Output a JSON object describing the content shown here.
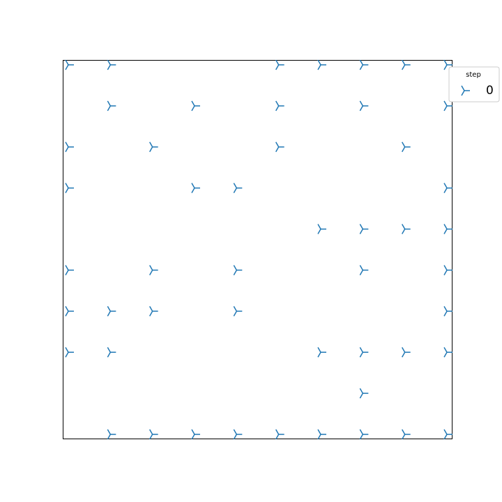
{
  "chart_data": {
    "type": "scatter",
    "title": "",
    "xlabel": "",
    "ylabel": "",
    "xlim": [
      0,
      9
    ],
    "ylim": [
      0,
      9
    ],
    "grid": false,
    "axes_visible": false,
    "marker": "tri_right",
    "color": "#1f77b4",
    "legend": {
      "title": "step",
      "placement": "upper-right-outside",
      "entries": [
        {
          "label": "0"
        }
      ]
    },
    "series": [
      {
        "name": "0",
        "points": [
          [
            0,
            9
          ],
          [
            1,
            9
          ],
          [
            5,
            9
          ],
          [
            6,
            9
          ],
          [
            7,
            9
          ],
          [
            8,
            9
          ],
          [
            9,
            9
          ],
          [
            1,
            8
          ],
          [
            3,
            8
          ],
          [
            5,
            8
          ],
          [
            7,
            8
          ],
          [
            9,
            8
          ],
          [
            0,
            7
          ],
          [
            2,
            7
          ],
          [
            5,
            7
          ],
          [
            8,
            7
          ],
          [
            0,
            6
          ],
          [
            3,
            6
          ],
          [
            4,
            6
          ],
          [
            9,
            6
          ],
          [
            6,
            5
          ],
          [
            7,
            5
          ],
          [
            8,
            5
          ],
          [
            9,
            5
          ],
          [
            0,
            4
          ],
          [
            2,
            4
          ],
          [
            4,
            4
          ],
          [
            7,
            4
          ],
          [
            9,
            4
          ],
          [
            0,
            3
          ],
          [
            1,
            3
          ],
          [
            2,
            3
          ],
          [
            4,
            3
          ],
          [
            9,
            3
          ],
          [
            0,
            2
          ],
          [
            1,
            2
          ],
          [
            6,
            2
          ],
          [
            7,
            2
          ],
          [
            8,
            2
          ],
          [
            9,
            2
          ],
          [
            7,
            1
          ],
          [
            1,
            0
          ],
          [
            2,
            0
          ],
          [
            3,
            0
          ],
          [
            4,
            0
          ],
          [
            5,
            0
          ],
          [
            6,
            0
          ],
          [
            7,
            0
          ],
          [
            8,
            0
          ],
          [
            9,
            0
          ]
        ]
      }
    ]
  }
}
